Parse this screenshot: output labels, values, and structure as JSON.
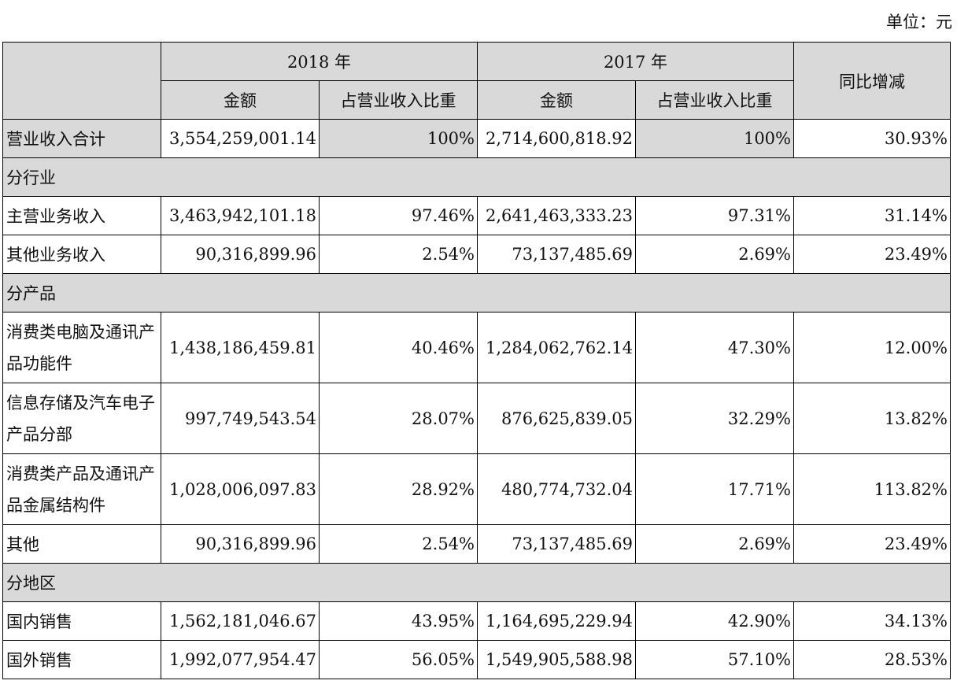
{
  "unit_label": "单位：元",
  "header": {
    "year_2018": "2018 年",
    "year_2017": "2017 年",
    "yoy": "同比增减",
    "amount": "金额",
    "ratio": "占营业收入比重"
  },
  "total": {
    "label": "营业收入合计",
    "a2018": "3,554,259,001.14",
    "r2018": "100%",
    "a2017": "2,714,600,818.92",
    "r2017": "100%",
    "yoy": "30.93%"
  },
  "sections": {
    "industry": "分行业",
    "product": "分产品",
    "region": "分地区"
  },
  "industry_rows": [
    {
      "label": "主营业务收入",
      "a2018": "3,463,942,101.18",
      "r2018": "97.46%",
      "a2017": "2,641,463,333.23",
      "r2017": "97.31%",
      "yoy": "31.14%"
    },
    {
      "label": "其他业务收入",
      "a2018": "90,316,899.96",
      "r2018": "2.54%",
      "a2017": "73,137,485.69",
      "r2017": "2.69%",
      "yoy": "23.49%"
    }
  ],
  "product_rows": [
    {
      "label": "消费类电脑及通讯产品功能件",
      "a2018": "1,438,186,459.81",
      "r2018": "40.46%",
      "a2017": "1,284,062,762.14",
      "r2017": "47.30%",
      "yoy": "12.00%"
    },
    {
      "label": "信息存储及汽车电子产品分部",
      "a2018": "997,749,543.54",
      "r2018": "28.07%",
      "a2017": "876,625,839.05",
      "r2017": "32.29%",
      "yoy": "13.82%"
    },
    {
      "label": "消费类产品及通讯产品金属结构件",
      "a2018": "1,028,006,097.83",
      "r2018": "28.92%",
      "a2017": "480,774,732.04",
      "r2017": "17.71%",
      "yoy": "113.82%"
    },
    {
      "label": "其他",
      "a2018": "90,316,899.96",
      "r2018": "2.54%",
      "a2017": "73,137,485.69",
      "r2017": "2.69%",
      "yoy": "23.49%"
    }
  ],
  "region_rows": [
    {
      "label": "国内销售",
      "a2018": "1,562,181,046.67",
      "r2018": "43.95%",
      "a2017": "1,164,695,229.94",
      "r2017": "42.90%",
      "yoy": "34.13%"
    },
    {
      "label": "国外销售",
      "a2018": "1,992,077,954.47",
      "r2018": "56.05%",
      "a2017": "1,549,905,588.98",
      "r2017": "57.10%",
      "yoy": "28.53%"
    }
  ]
}
